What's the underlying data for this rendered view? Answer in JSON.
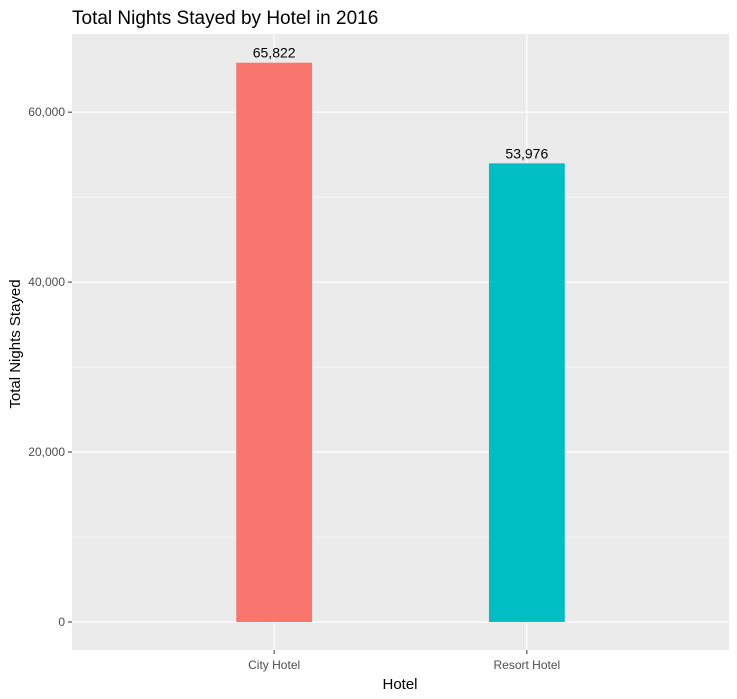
{
  "chart_data": {
    "type": "bar",
    "title": "Total Nights Stayed by Hotel in 2016",
    "xlabel": "Hotel",
    "ylabel": "Total Nights Stayed",
    "categories": [
      "City Hotel",
      "Resort Hotel"
    ],
    "values": [
      65822,
      53976
    ],
    "data_labels": [
      "65,822",
      "53,976"
    ],
    "colors": [
      "#F8766D",
      "#00BFC4"
    ],
    "ylim": [
      -3300,
      69200
    ],
    "y_ticks": [
      0,
      20000,
      40000,
      60000
    ],
    "y_tick_labels": [
      "0",
      "20,000",
      "40,000",
      "60,000"
    ],
    "grid": true,
    "legend": "none",
    "panel_background": "#EBEBEB",
    "grid_color": "#FFFFFF"
  }
}
